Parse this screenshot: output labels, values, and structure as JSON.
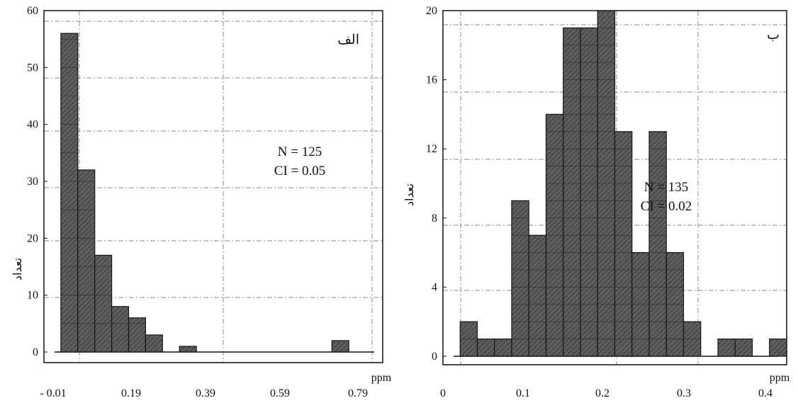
{
  "colors": {
    "bar_fill": "#5a5a5a",
    "bar_edge": "#151515",
    "grid": "#8a8a8a",
    "frame": "#111111"
  },
  "chart_data": [
    {
      "type": "bar",
      "panel_label": "الف",
      "xlabel": "ppm",
      "ylabel": "تعداد",
      "x_ticks": [
        "- 0.01",
        "0.19",
        "0.39",
        "0.59",
        "0.79"
      ],
      "y_ticks": [
        "0",
        "10",
        "20",
        "30",
        "40",
        "50",
        "60"
      ],
      "xlim": [
        -0.01,
        0.79
      ],
      "ylim": [
        0,
        60
      ],
      "grid": true,
      "annotation": [
        "N = 125",
        "CI = 0.05"
      ],
      "bin_width": 0.04,
      "bin_starts": [
        0.03,
        0.07,
        0.11,
        0.15,
        0.19,
        0.23,
        0.27,
        0.31,
        0.35,
        0.39,
        0.43,
        0.47,
        0.51,
        0.55,
        0.59,
        0.63,
        0.67,
        0.71,
        0.75
      ],
      "values": [
        56,
        32,
        17,
        8,
        6,
        3,
        0,
        1,
        0,
        0,
        0,
        0,
        0,
        0,
        0,
        0,
        2,
        0,
        0
      ]
    },
    {
      "type": "bar",
      "panel_label": "ب",
      "xlabel": "ppm",
      "ylabel": "تعداد",
      "x_ticks": [
        "0",
        "0.1",
        "0.2",
        "0.3",
        "0.4"
      ],
      "y_ticks": [
        "0",
        "4",
        "8",
        "12",
        "16",
        "20"
      ],
      "xlim": [
        0,
        0.4
      ],
      "ylim": [
        0,
        20
      ],
      "grid": true,
      "annotation": [
        "N = 135",
        "CI = 0.02"
      ],
      "bin_width": 0.02,
      "bin_starts": [
        0.02,
        0.04,
        0.06,
        0.08,
        0.1,
        0.12,
        0.14,
        0.16,
        0.18,
        0.2,
        0.22,
        0.24,
        0.26,
        0.28,
        0.3,
        0.32,
        0.34,
        0.36,
        0.38
      ],
      "values": [
        2,
        1,
        1,
        9,
        7,
        14,
        19,
        19,
        20,
        13,
        6,
        13,
        6,
        2,
        0,
        1,
        1,
        0,
        1
      ]
    }
  ]
}
